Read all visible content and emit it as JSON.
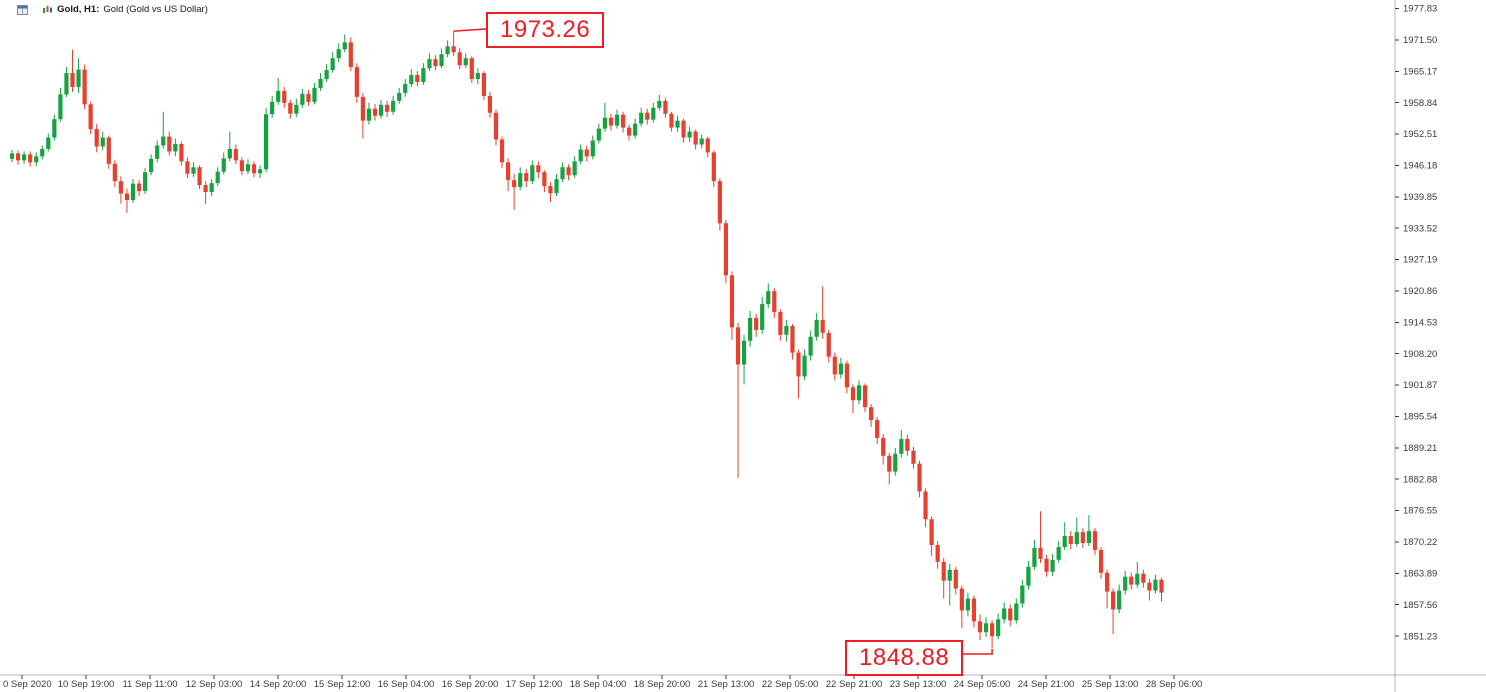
{
  "window": {
    "symbol_period": "Gold, H1:",
    "description": "Gold (Gold vs US Dollar)"
  },
  "icons": {
    "window_icon": "mini-window-grid",
    "chart_icon": "mini-candlestick-chart"
  },
  "colors": {
    "up": "#17a142",
    "down": "#e7402e",
    "annotation": "#ee1c23",
    "axis_text": "#3a3a3a",
    "axis_line": "#b4b4b4",
    "background": "#ffffff",
    "title_text": "#1a1a1a"
  },
  "annotations": {
    "high_label": "1973.26",
    "low_label": "1848.88"
  },
  "chart_data": {
    "type": "candlestick",
    "title": "Gold (Gold vs US Dollar)",
    "timeframe": "H1",
    "candle_format": "[open, high, low, close]",
    "y_axis": {
      "min": 1851.23,
      "max": 1977.83,
      "ticks": [
        "1977.83",
        "1971.50",
        "1965.17",
        "1958.84",
        "1952.51",
        "1946.18",
        "1939.85",
        "1933.52",
        "1927.19",
        "1920.86",
        "1914.53",
        "1908.20",
        "1901.87",
        "1895.54",
        "1889.21",
        "1882.88",
        "1876.55",
        "1870.22",
        "1863.89",
        "1857.56",
        "1851.23"
      ]
    },
    "x_axis": {
      "ticks": [
        "0 Sep 2020",
        "10 Sep 19:00",
        "11 Sep 11:00",
        "12 Sep 03:00",
        "14 Sep 20:00",
        "15 Sep 12:00",
        "16 Sep 04:00",
        "16 Sep 20:00",
        "17 Sep 12:00",
        "18 Sep 04:00",
        "18 Sep 20:00",
        "21 Sep 13:00",
        "22 Sep 05:00",
        "22 Sep 21:00",
        "23 Sep 13:00",
        "24 Sep 05:00",
        "24 Sep 21:00",
        "25 Sep 13:00",
        "28 Sep 06:00"
      ]
    },
    "high_annotation": {
      "value": 1973.26,
      "candle_index": 73
    },
    "low_annotation": {
      "value": 1848.88,
      "candle_index": 162
    },
    "candles": [
      [
        1947.5,
        1949.3,
        1946.8,
        1948.6
      ],
      [
        1948.6,
        1949.2,
        1946.3,
        1947.2
      ],
      [
        1947.2,
        1949.0,
        1946.5,
        1948.4
      ],
      [
        1948.4,
        1949.0,
        1945.9,
        1946.8
      ],
      [
        1946.8,
        1948.8,
        1946.0,
        1948.0
      ],
      [
        1948.0,
        1950.2,
        1947.4,
        1949.5
      ],
      [
        1949.5,
        1952.6,
        1949.0,
        1951.8
      ],
      [
        1951.8,
        1956.4,
        1951.2,
        1955.5
      ],
      [
        1955.5,
        1961.8,
        1955.0,
        1960.5
      ],
      [
        1960.5,
        1966.0,
        1960.0,
        1964.8
      ],
      [
        1964.8,
        1969.5,
        1961.0,
        1962.0
      ],
      [
        1962.0,
        1967.8,
        1960.8,
        1965.5
      ],
      [
        1965.5,
        1966.5,
        1957.5,
        1958.5
      ],
      [
        1958.5,
        1959.0,
        1952.5,
        1953.5
      ],
      [
        1953.5,
        1954.5,
        1948.8,
        1950.0
      ],
      [
        1950.0,
        1953.0,
        1949.2,
        1951.8
      ],
      [
        1951.8,
        1952.2,
        1945.5,
        1946.5
      ],
      [
        1946.5,
        1947.2,
        1941.8,
        1943.0
      ],
      [
        1943.0,
        1944.0,
        1938.5,
        1940.5
      ],
      [
        1940.5,
        1941.5,
        1936.6,
        1939.2
      ],
      [
        1939.2,
        1943.4,
        1938.6,
        1942.5
      ],
      [
        1942.5,
        1943.2,
        1940.0,
        1941.0
      ],
      [
        1941.0,
        1945.6,
        1940.4,
        1944.8
      ],
      [
        1944.8,
        1948.4,
        1944.2,
        1947.5
      ],
      [
        1947.5,
        1951.2,
        1946.8,
        1950.2
      ],
      [
        1950.2,
        1957.0,
        1949.6,
        1952.0
      ],
      [
        1952.0,
        1953.0,
        1948.2,
        1949.0
      ],
      [
        1949.0,
        1951.6,
        1948.0,
        1950.5
      ],
      [
        1950.5,
        1951.0,
        1946.2,
        1947.0
      ],
      [
        1947.0,
        1947.8,
        1943.6,
        1944.5
      ],
      [
        1944.5,
        1946.8,
        1943.8,
        1945.8
      ],
      [
        1945.8,
        1946.2,
        1941.4,
        1942.2
      ],
      [
        1942.2,
        1943.0,
        1938.4,
        1940.8
      ],
      [
        1940.8,
        1943.4,
        1940.0,
        1942.6
      ],
      [
        1942.6,
        1945.8,
        1942.0,
        1944.9
      ],
      [
        1944.9,
        1948.8,
        1944.3,
        1947.6
      ],
      [
        1947.6,
        1953.0,
        1947.0,
        1949.5
      ],
      [
        1949.5,
        1950.4,
        1946.4,
        1947.2
      ],
      [
        1947.2,
        1947.8,
        1944.2,
        1945.0
      ],
      [
        1945.0,
        1947.4,
        1944.4,
        1946.4
      ],
      [
        1946.4,
        1947.0,
        1943.8,
        1944.6
      ],
      [
        1944.6,
        1946.2,
        1943.6,
        1945.4
      ],
      [
        1945.4,
        1957.8,
        1944.8,
        1956.5
      ],
      [
        1956.5,
        1960.2,
        1955.8,
        1959.0
      ],
      [
        1959.0,
        1963.8,
        1958.4,
        1961.2
      ],
      [
        1961.2,
        1962.0,
        1957.8,
        1958.8
      ],
      [
        1958.8,
        1959.4,
        1955.6,
        1956.6
      ],
      [
        1956.6,
        1959.6,
        1955.9,
        1958.4
      ],
      [
        1958.4,
        1961.6,
        1957.8,
        1960.6
      ],
      [
        1960.6,
        1961.4,
        1958.2,
        1959.0
      ],
      [
        1959.0,
        1962.8,
        1958.5,
        1961.8
      ],
      [
        1961.8,
        1964.8,
        1961.2,
        1963.6
      ],
      [
        1963.6,
        1966.6,
        1963.0,
        1965.4
      ],
      [
        1965.4,
        1969.0,
        1964.9,
        1967.8
      ],
      [
        1967.8,
        1970.8,
        1967.0,
        1969.6
      ],
      [
        1969.6,
        1972.6,
        1969.0,
        1971.0
      ],
      [
        1971.0,
        1972.0,
        1965.2,
        1966.0
      ],
      [
        1966.0,
        1966.8,
        1958.8,
        1960.0
      ],
      [
        1960.0,
        1960.8,
        1951.6,
        1955.2
      ],
      [
        1955.2,
        1958.8,
        1954.4,
        1957.6
      ],
      [
        1957.6,
        1958.6,
        1955.2,
        1956.2
      ],
      [
        1956.2,
        1959.4,
        1955.6,
        1958.4
      ],
      [
        1958.4,
        1959.2,
        1956.0,
        1957.0
      ],
      [
        1957.0,
        1960.2,
        1956.4,
        1959.2
      ],
      [
        1959.2,
        1961.8,
        1958.6,
        1960.8
      ],
      [
        1960.8,
        1963.6,
        1960.0,
        1962.6
      ],
      [
        1962.6,
        1965.6,
        1962.0,
        1964.4
      ],
      [
        1964.4,
        1965.2,
        1962.2,
        1963.0
      ],
      [
        1963.0,
        1966.8,
        1962.4,
        1965.8
      ],
      [
        1965.8,
        1968.8,
        1965.2,
        1967.6
      ],
      [
        1967.6,
        1968.4,
        1965.4,
        1966.2
      ],
      [
        1966.2,
        1969.8,
        1965.8,
        1968.6
      ],
      [
        1968.6,
        1971.4,
        1968.0,
        1970.2
      ],
      [
        1970.2,
        1973.26,
        1968.2,
        1969.0
      ],
      [
        1969.0,
        1969.8,
        1965.6,
        1966.4
      ],
      [
        1966.4,
        1968.8,
        1965.8,
        1967.8
      ],
      [
        1967.8,
        1968.2,
        1962.8,
        1963.6
      ],
      [
        1963.6,
        1965.8,
        1962.6,
        1964.8
      ],
      [
        1964.8,
        1965.2,
        1959.4,
        1960.2
      ],
      [
        1960.2,
        1961.0,
        1955.8,
        1956.8
      ],
      [
        1956.8,
        1957.4,
        1950.2,
        1951.4
      ],
      [
        1951.4,
        1952.0,
        1945.6,
        1946.8
      ],
      [
        1946.8,
        1947.6,
        1941.0,
        1943.2
      ],
      [
        1943.2,
        1944.4,
        1937.2,
        1941.8
      ],
      [
        1941.8,
        1945.8,
        1941.2,
        1944.6
      ],
      [
        1944.6,
        1945.4,
        1941.8,
        1943.0
      ],
      [
        1943.0,
        1947.2,
        1942.4,
        1946.2
      ],
      [
        1946.2,
        1947.0,
        1943.6,
        1944.8
      ],
      [
        1944.8,
        1945.2,
        1940.8,
        1942.0
      ],
      [
        1942.0,
        1942.8,
        1938.8,
        1940.6
      ],
      [
        1940.6,
        1944.4,
        1940.0,
        1943.4
      ],
      [
        1943.4,
        1946.8,
        1942.8,
        1945.8
      ],
      [
        1945.8,
        1946.4,
        1943.2,
        1944.2
      ],
      [
        1944.2,
        1948.0,
        1943.6,
        1947.0
      ],
      [
        1947.0,
        1950.4,
        1946.4,
        1949.4
      ],
      [
        1949.4,
        1950.2,
        1947.0,
        1948.0
      ],
      [
        1948.0,
        1952.2,
        1947.4,
        1951.2
      ],
      [
        1951.2,
        1954.6,
        1950.6,
        1953.6
      ],
      [
        1953.6,
        1958.8,
        1953.0,
        1955.8
      ],
      [
        1955.8,
        1956.6,
        1953.2,
        1954.2
      ],
      [
        1954.2,
        1957.4,
        1953.6,
        1956.4
      ],
      [
        1956.4,
        1957.0,
        1952.8,
        1953.8
      ],
      [
        1953.8,
        1954.4,
        1951.2,
        1952.2
      ],
      [
        1952.2,
        1955.6,
        1951.6,
        1954.6
      ],
      [
        1954.6,
        1957.8,
        1954.0,
        1956.8
      ],
      [
        1956.8,
        1957.6,
        1954.4,
        1955.4
      ],
      [
        1955.4,
        1958.8,
        1954.8,
        1957.8
      ],
      [
        1957.8,
        1960.4,
        1957.2,
        1959.2
      ],
      [
        1959.2,
        1959.8,
        1955.8,
        1956.6
      ],
      [
        1956.6,
        1957.0,
        1953.0,
        1953.8
      ],
      [
        1953.8,
        1956.2,
        1953.0,
        1955.2
      ],
      [
        1955.2,
        1955.6,
        1950.8,
        1951.8
      ],
      [
        1951.8,
        1954.0,
        1950.9,
        1953.0
      ],
      [
        1953.0,
        1953.4,
        1949.4,
        1950.4
      ],
      [
        1950.4,
        1952.4,
        1949.6,
        1951.6
      ],
      [
        1951.6,
        1952.0,
        1947.8,
        1948.8
      ],
      [
        1948.8,
        1949.2,
        1941.8,
        1943.0
      ],
      [
        1943.0,
        1943.6,
        1933.0,
        1934.5
      ],
      [
        1934.5,
        1935.2,
        1922.4,
        1924.0
      ],
      [
        1924.0,
        1924.8,
        1911.0,
        1913.5
      ],
      [
        1913.5,
        1914.4,
        1883.2,
        1906.0
      ],
      [
        1906.0,
        1912.0,
        1902.0,
        1910.8
      ],
      [
        1910.8,
        1916.8,
        1909.6,
        1915.4
      ],
      [
        1915.4,
        1916.2,
        1911.6,
        1913.0
      ],
      [
        1913.0,
        1919.6,
        1912.2,
        1918.2
      ],
      [
        1918.2,
        1922.4,
        1917.4,
        1920.8
      ],
      [
        1920.8,
        1921.4,
        1915.4,
        1916.6
      ],
      [
        1916.6,
        1917.2,
        1910.8,
        1912.0
      ],
      [
        1912.0,
        1915.0,
        1910.6,
        1913.8
      ],
      [
        1913.8,
        1914.2,
        1907.0,
        1908.4
      ],
      [
        1908.4,
        1909.0,
        1899.2,
        1903.6
      ],
      [
        1903.6,
        1909.0,
        1902.8,
        1907.8
      ],
      [
        1907.8,
        1912.8,
        1906.8,
        1911.6
      ],
      [
        1911.6,
        1916.4,
        1910.8,
        1915.0
      ],
      [
        1915.0,
        1921.8,
        1911.2,
        1912.4
      ],
      [
        1912.4,
        1913.0,
        1906.4,
        1907.6
      ],
      [
        1907.6,
        1908.4,
        1902.8,
        1904.0
      ],
      [
        1904.0,
        1907.4,
        1903.2,
        1906.2
      ],
      [
        1906.2,
        1906.8,
        1900.2,
        1901.4
      ],
      [
        1901.4,
        1902.0,
        1896.2,
        1898.8
      ],
      [
        1898.8,
        1902.8,
        1898.0,
        1901.8
      ],
      [
        1901.8,
        1902.2,
        1896.4,
        1897.4
      ],
      [
        1897.4,
        1898.0,
        1893.4,
        1894.8
      ],
      [
        1894.8,
        1895.4,
        1890.0,
        1891.2
      ],
      [
        1891.2,
        1892.0,
        1885.8,
        1887.6
      ],
      [
        1887.6,
        1888.2,
        1881.8,
        1884.4
      ],
      [
        1884.4,
        1889.2,
        1883.6,
        1888.0
      ],
      [
        1888.0,
        1892.8,
        1887.2,
        1891.0
      ],
      [
        1891.0,
        1891.8,
        1887.6,
        1888.6
      ],
      [
        1888.6,
        1889.4,
        1885.0,
        1886.0
      ],
      [
        1886.0,
        1886.6,
        1879.2,
        1880.4
      ],
      [
        1880.4,
        1881.0,
        1873.2,
        1874.8
      ],
      [
        1874.8,
        1875.4,
        1867.4,
        1869.6
      ],
      [
        1869.6,
        1870.4,
        1864.8,
        1866.2
      ],
      [
        1866.2,
        1867.0,
        1858.8,
        1862.4
      ],
      [
        1862.4,
        1865.8,
        1857.4,
        1864.6
      ],
      [
        1864.6,
        1865.2,
        1859.6,
        1860.8
      ],
      [
        1860.8,
        1861.4,
        1852.8,
        1856.4
      ],
      [
        1856.4,
        1860.0,
        1855.2,
        1858.8
      ],
      [
        1858.8,
        1859.4,
        1853.0,
        1854.2
      ],
      [
        1854.2,
        1855.6,
        1850.4,
        1852.0
      ],
      [
        1852.0,
        1855.0,
        1851.0,
        1853.8
      ],
      [
        1853.8,
        1854.4,
        1848.88,
        1851.2
      ],
      [
        1851.2,
        1855.8,
        1850.6,
        1854.6
      ],
      [
        1854.6,
        1858.0,
        1853.8,
        1856.8
      ],
      [
        1856.8,
        1857.6,
        1853.2,
        1854.4
      ],
      [
        1854.4,
        1858.8,
        1853.8,
        1857.8
      ],
      [
        1857.8,
        1862.6,
        1857.0,
        1861.4
      ],
      [
        1861.4,
        1866.4,
        1860.6,
        1865.2
      ],
      [
        1865.2,
        1870.6,
        1864.6,
        1869.0
      ],
      [
        1869.0,
        1876.4,
        1866.0,
        1866.8
      ],
      [
        1866.8,
        1867.6,
        1863.2,
        1864.2
      ],
      [
        1864.2,
        1867.8,
        1863.4,
        1866.6
      ],
      [
        1866.6,
        1870.4,
        1866.0,
        1869.2
      ],
      [
        1869.2,
        1874.2,
        1868.6,
        1871.4
      ],
      [
        1871.4,
        1872.4,
        1868.8,
        1869.8
      ],
      [
        1869.8,
        1875.2,
        1869.2,
        1872.2
      ],
      [
        1872.2,
        1873.0,
        1869.0,
        1870.0
      ],
      [
        1870.0,
        1875.6,
        1869.4,
        1872.4
      ],
      [
        1872.4,
        1873.0,
        1867.6,
        1868.6
      ],
      [
        1868.6,
        1869.2,
        1862.8,
        1864.0
      ],
      [
        1864.0,
        1864.6,
        1856.8,
        1860.2
      ],
      [
        1860.2,
        1860.8,
        1851.6,
        1856.6
      ],
      [
        1856.6,
        1861.6,
        1855.8,
        1860.4
      ],
      [
        1860.4,
        1864.4,
        1859.6,
        1863.2
      ],
      [
        1863.2,
        1864.0,
        1860.6,
        1861.6
      ],
      [
        1861.6,
        1866.2,
        1861.0,
        1863.8
      ],
      [
        1863.8,
        1864.6,
        1861.0,
        1862.0
      ],
      [
        1862.0,
        1862.8,
        1858.4,
        1860.4
      ],
      [
        1860.4,
        1863.6,
        1859.8,
        1862.6
      ],
      [
        1862.6,
        1863.0,
        1858.2,
        1860.0
      ]
    ]
  }
}
